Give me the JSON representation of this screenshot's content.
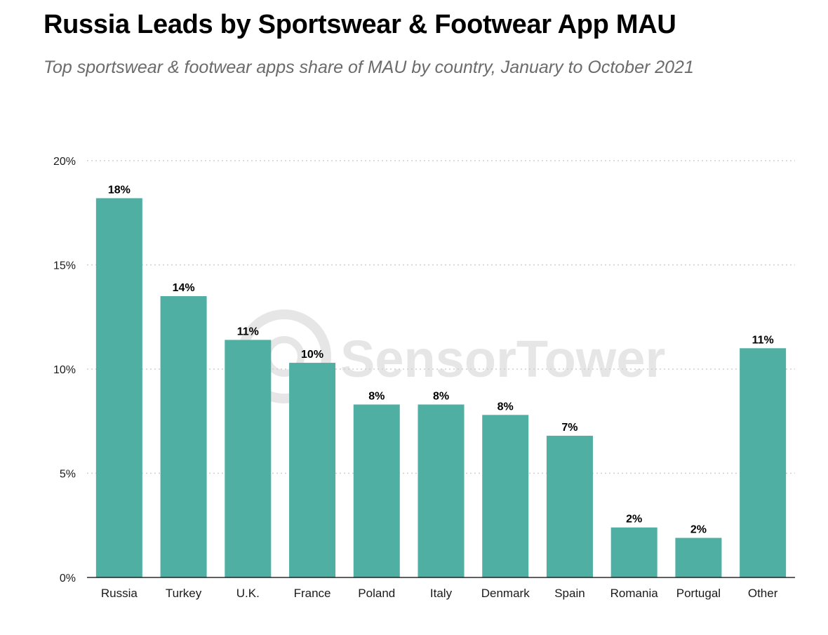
{
  "header": {
    "title": "Russia Leads by Sportswear & Footwear App MAU",
    "subtitle": "Top sportswear & footwear apps share of MAU by country, January to October 2021"
  },
  "watermark": {
    "text": "SensorTower",
    "icon": "sensor-tower-logo-icon"
  },
  "colors": {
    "bar": "#4fafa3",
    "gridline": "#cfcfcf",
    "axis": "#000000",
    "title": "#000000",
    "subtitle": "#6b6b6b",
    "watermark": "#e6e6e6"
  },
  "chart_data": {
    "type": "bar",
    "title": "Russia Leads by Sportswear & Footwear App MAU",
    "subtitle": "Top sportswear & footwear apps share of MAU by country, January to October 2021",
    "xlabel": "",
    "ylabel": "",
    "categories": [
      "Russia",
      "Turkey",
      "U.K.",
      "France",
      "Poland",
      "Italy",
      "Denmark",
      "Spain",
      "Romania",
      "Portugal",
      "Other"
    ],
    "values": [
      18.2,
      13.5,
      11.4,
      10.3,
      8.3,
      8.3,
      7.8,
      6.8,
      2.4,
      1.9,
      11.0
    ],
    "data_labels": [
      "18%",
      "14%",
      "11%",
      "10%",
      "8%",
      "8%",
      "8%",
      "7%",
      "2%",
      "2%",
      "11%"
    ],
    "ylim": [
      0,
      20
    ],
    "yticks": [
      0,
      5,
      10,
      15,
      20
    ],
    "ytick_labels": [
      "0%",
      "5%",
      "10%",
      "15%",
      "20%"
    ],
    "grid": true,
    "legend": "none"
  }
}
